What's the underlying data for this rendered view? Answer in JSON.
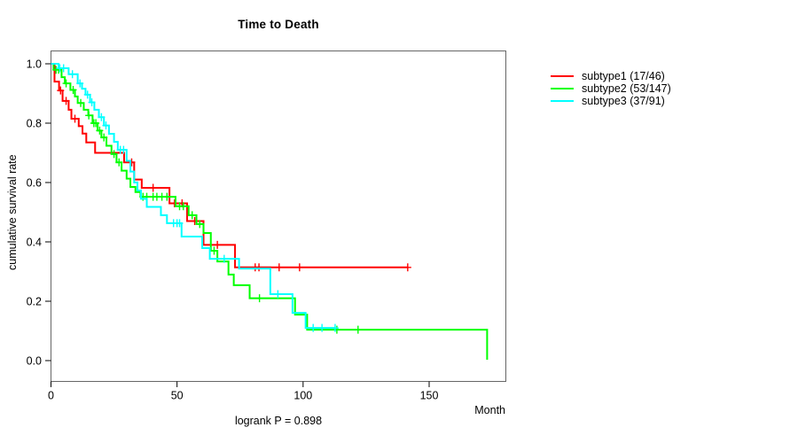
{
  "title": "Time to Death",
  "chart_data": {
    "type": "line",
    "subtype": "kaplan-meier-step-survival",
    "title": "Time to Death",
    "xlabel": "Month",
    "ylabel": "cumulative survival rate",
    "annotation": "logrank P = 0.898",
    "xlim": [
      0,
      180
    ],
    "ylim": [
      0.0,
      1.0
    ],
    "xticks": [
      "0",
      "50",
      "100",
      "150"
    ],
    "xtick_values": [
      0,
      50,
      100,
      150
    ],
    "yticks": [
      "0.0",
      "0.2",
      "0.4",
      "0.6",
      "0.8",
      "1.0"
    ],
    "ytick_values": [
      0.0,
      0.2,
      0.4,
      0.6,
      0.8,
      1.0
    ],
    "grid": false,
    "legend_position": "right-outside",
    "axis_color": "#000000",
    "box_color": "#666666",
    "series": [
      {
        "name": "subtype1",
        "label": "subtype1 (17/46)",
        "events": 17,
        "n": 46,
        "color": "#ff0000",
        "steps": [
          [
            0,
            1.0
          ],
          [
            1.4,
            0.94
          ],
          [
            3.2,
            0.91
          ],
          [
            4.6,
            0.875
          ],
          [
            7,
            0.845
          ],
          [
            8.1,
            0.815
          ],
          [
            11,
            0.79
          ],
          [
            12.5,
            0.765
          ],
          [
            14,
            0.735
          ],
          [
            17.5,
            0.7
          ],
          [
            29,
            0.668
          ],
          [
            33,
            0.61
          ],
          [
            36,
            0.582
          ],
          [
            47,
            0.53
          ],
          [
            54,
            0.47
          ],
          [
            60.5,
            0.39
          ],
          [
            73,
            0.314
          ]
        ],
        "end_month": 141.5,
        "censors": [
          [
            3.8,
            0.91
          ],
          [
            6,
            0.875
          ],
          [
            9.5,
            0.815
          ],
          [
            32,
            0.668
          ],
          [
            40.5,
            0.582
          ],
          [
            49,
            0.53
          ],
          [
            52,
            0.53
          ],
          [
            57,
            0.47
          ],
          [
            66,
            0.39
          ],
          [
            81,
            0.314
          ],
          [
            82.5,
            0.314
          ],
          [
            90.5,
            0.314
          ],
          [
            98.6,
            0.314
          ],
          [
            141.5,
            0.314
          ]
        ]
      },
      {
        "name": "subtype2",
        "label": "subtype2 (53/147)",
        "events": 53,
        "n": 147,
        "color": "#00ff00",
        "steps": [
          [
            0,
            1.0
          ],
          [
            1,
            0.98
          ],
          [
            4.2,
            0.955
          ],
          [
            5.5,
            0.934
          ],
          [
            7.7,
            0.912
          ],
          [
            9.5,
            0.89
          ],
          [
            10.6,
            0.868
          ],
          [
            13,
            0.845
          ],
          [
            14.8,
            0.826
          ],
          [
            16.5,
            0.8
          ],
          [
            18.5,
            0.775
          ],
          [
            20,
            0.752
          ],
          [
            22,
            0.724
          ],
          [
            24,
            0.696
          ],
          [
            26,
            0.668
          ],
          [
            28,
            0.64
          ],
          [
            30,
            0.613
          ],
          [
            31.5,
            0.585
          ],
          [
            33.5,
            0.568
          ],
          [
            35.5,
            0.552
          ],
          [
            49.4,
            0.52
          ],
          [
            54.6,
            0.49
          ],
          [
            57.7,
            0.46
          ],
          [
            60.5,
            0.43
          ],
          [
            63.4,
            0.37
          ],
          [
            66,
            0.334
          ],
          [
            70.4,
            0.29
          ],
          [
            72.5,
            0.254
          ],
          [
            78.8,
            0.21
          ],
          [
            96.8,
            0.155
          ],
          [
            101.6,
            0.104
          ],
          [
            173,
            0.003
          ]
        ],
        "end_month": 173,
        "censors": [
          [
            2,
            0.98
          ],
          [
            3,
            0.98
          ],
          [
            6,
            0.934
          ],
          [
            8.8,
            0.912
          ],
          [
            11.8,
            0.868
          ],
          [
            15,
            0.826
          ],
          [
            17,
            0.8
          ],
          [
            17.8,
            0.8
          ],
          [
            19.3,
            0.775
          ],
          [
            21,
            0.752
          ],
          [
            25,
            0.696
          ],
          [
            27,
            0.668
          ],
          [
            36.5,
            0.552
          ],
          [
            38,
            0.552
          ],
          [
            40.5,
            0.552
          ],
          [
            42,
            0.552
          ],
          [
            44,
            0.552
          ],
          [
            46,
            0.552
          ],
          [
            51,
            0.52
          ],
          [
            52.5,
            0.52
          ],
          [
            56,
            0.49
          ],
          [
            59,
            0.46
          ],
          [
            64.7,
            0.37
          ],
          [
            82.7,
            0.21
          ],
          [
            113.4,
            0.104
          ],
          [
            121.8,
            0.104
          ]
        ]
      },
      {
        "name": "subtype3",
        "label": "subtype3 (37/91)",
        "events": 37,
        "n": 91,
        "color": "#00ffff",
        "steps": [
          [
            0,
            1.0
          ],
          [
            3,
            0.985
          ],
          [
            7,
            0.965
          ],
          [
            10.6,
            0.934
          ],
          [
            12.3,
            0.916
          ],
          [
            13.7,
            0.896
          ],
          [
            15.5,
            0.87
          ],
          [
            17.2,
            0.845
          ],
          [
            19,
            0.82
          ],
          [
            21,
            0.792
          ],
          [
            23,
            0.764
          ],
          [
            25,
            0.737
          ],
          [
            26.5,
            0.71
          ],
          [
            30,
            0.673
          ],
          [
            31.5,
            0.637
          ],
          [
            33,
            0.6
          ],
          [
            34.3,
            0.573
          ],
          [
            35.7,
            0.545
          ],
          [
            38,
            0.518
          ],
          [
            43.6,
            0.49
          ],
          [
            46,
            0.463
          ],
          [
            51.8,
            0.418
          ],
          [
            60,
            0.379
          ],
          [
            63,
            0.343
          ],
          [
            74.6,
            0.31
          ],
          [
            87,
            0.224
          ],
          [
            95.8,
            0.161
          ],
          [
            101,
            0.11
          ]
        ],
        "end_month": 112.7,
        "censors": [
          [
            3.5,
            0.985
          ],
          [
            5,
            0.985
          ],
          [
            8.5,
            0.965
          ],
          [
            11.5,
            0.934
          ],
          [
            14.5,
            0.896
          ],
          [
            16.2,
            0.87
          ],
          [
            20,
            0.82
          ],
          [
            21.8,
            0.792
          ],
          [
            27.5,
            0.71
          ],
          [
            28.8,
            0.71
          ],
          [
            48.6,
            0.463
          ],
          [
            50,
            0.463
          ],
          [
            51,
            0.463
          ],
          [
            68.7,
            0.343
          ],
          [
            90,
            0.224
          ],
          [
            104,
            0.11
          ],
          [
            107.5,
            0.11
          ],
          [
            112.7,
            0.11
          ]
        ]
      }
    ]
  }
}
